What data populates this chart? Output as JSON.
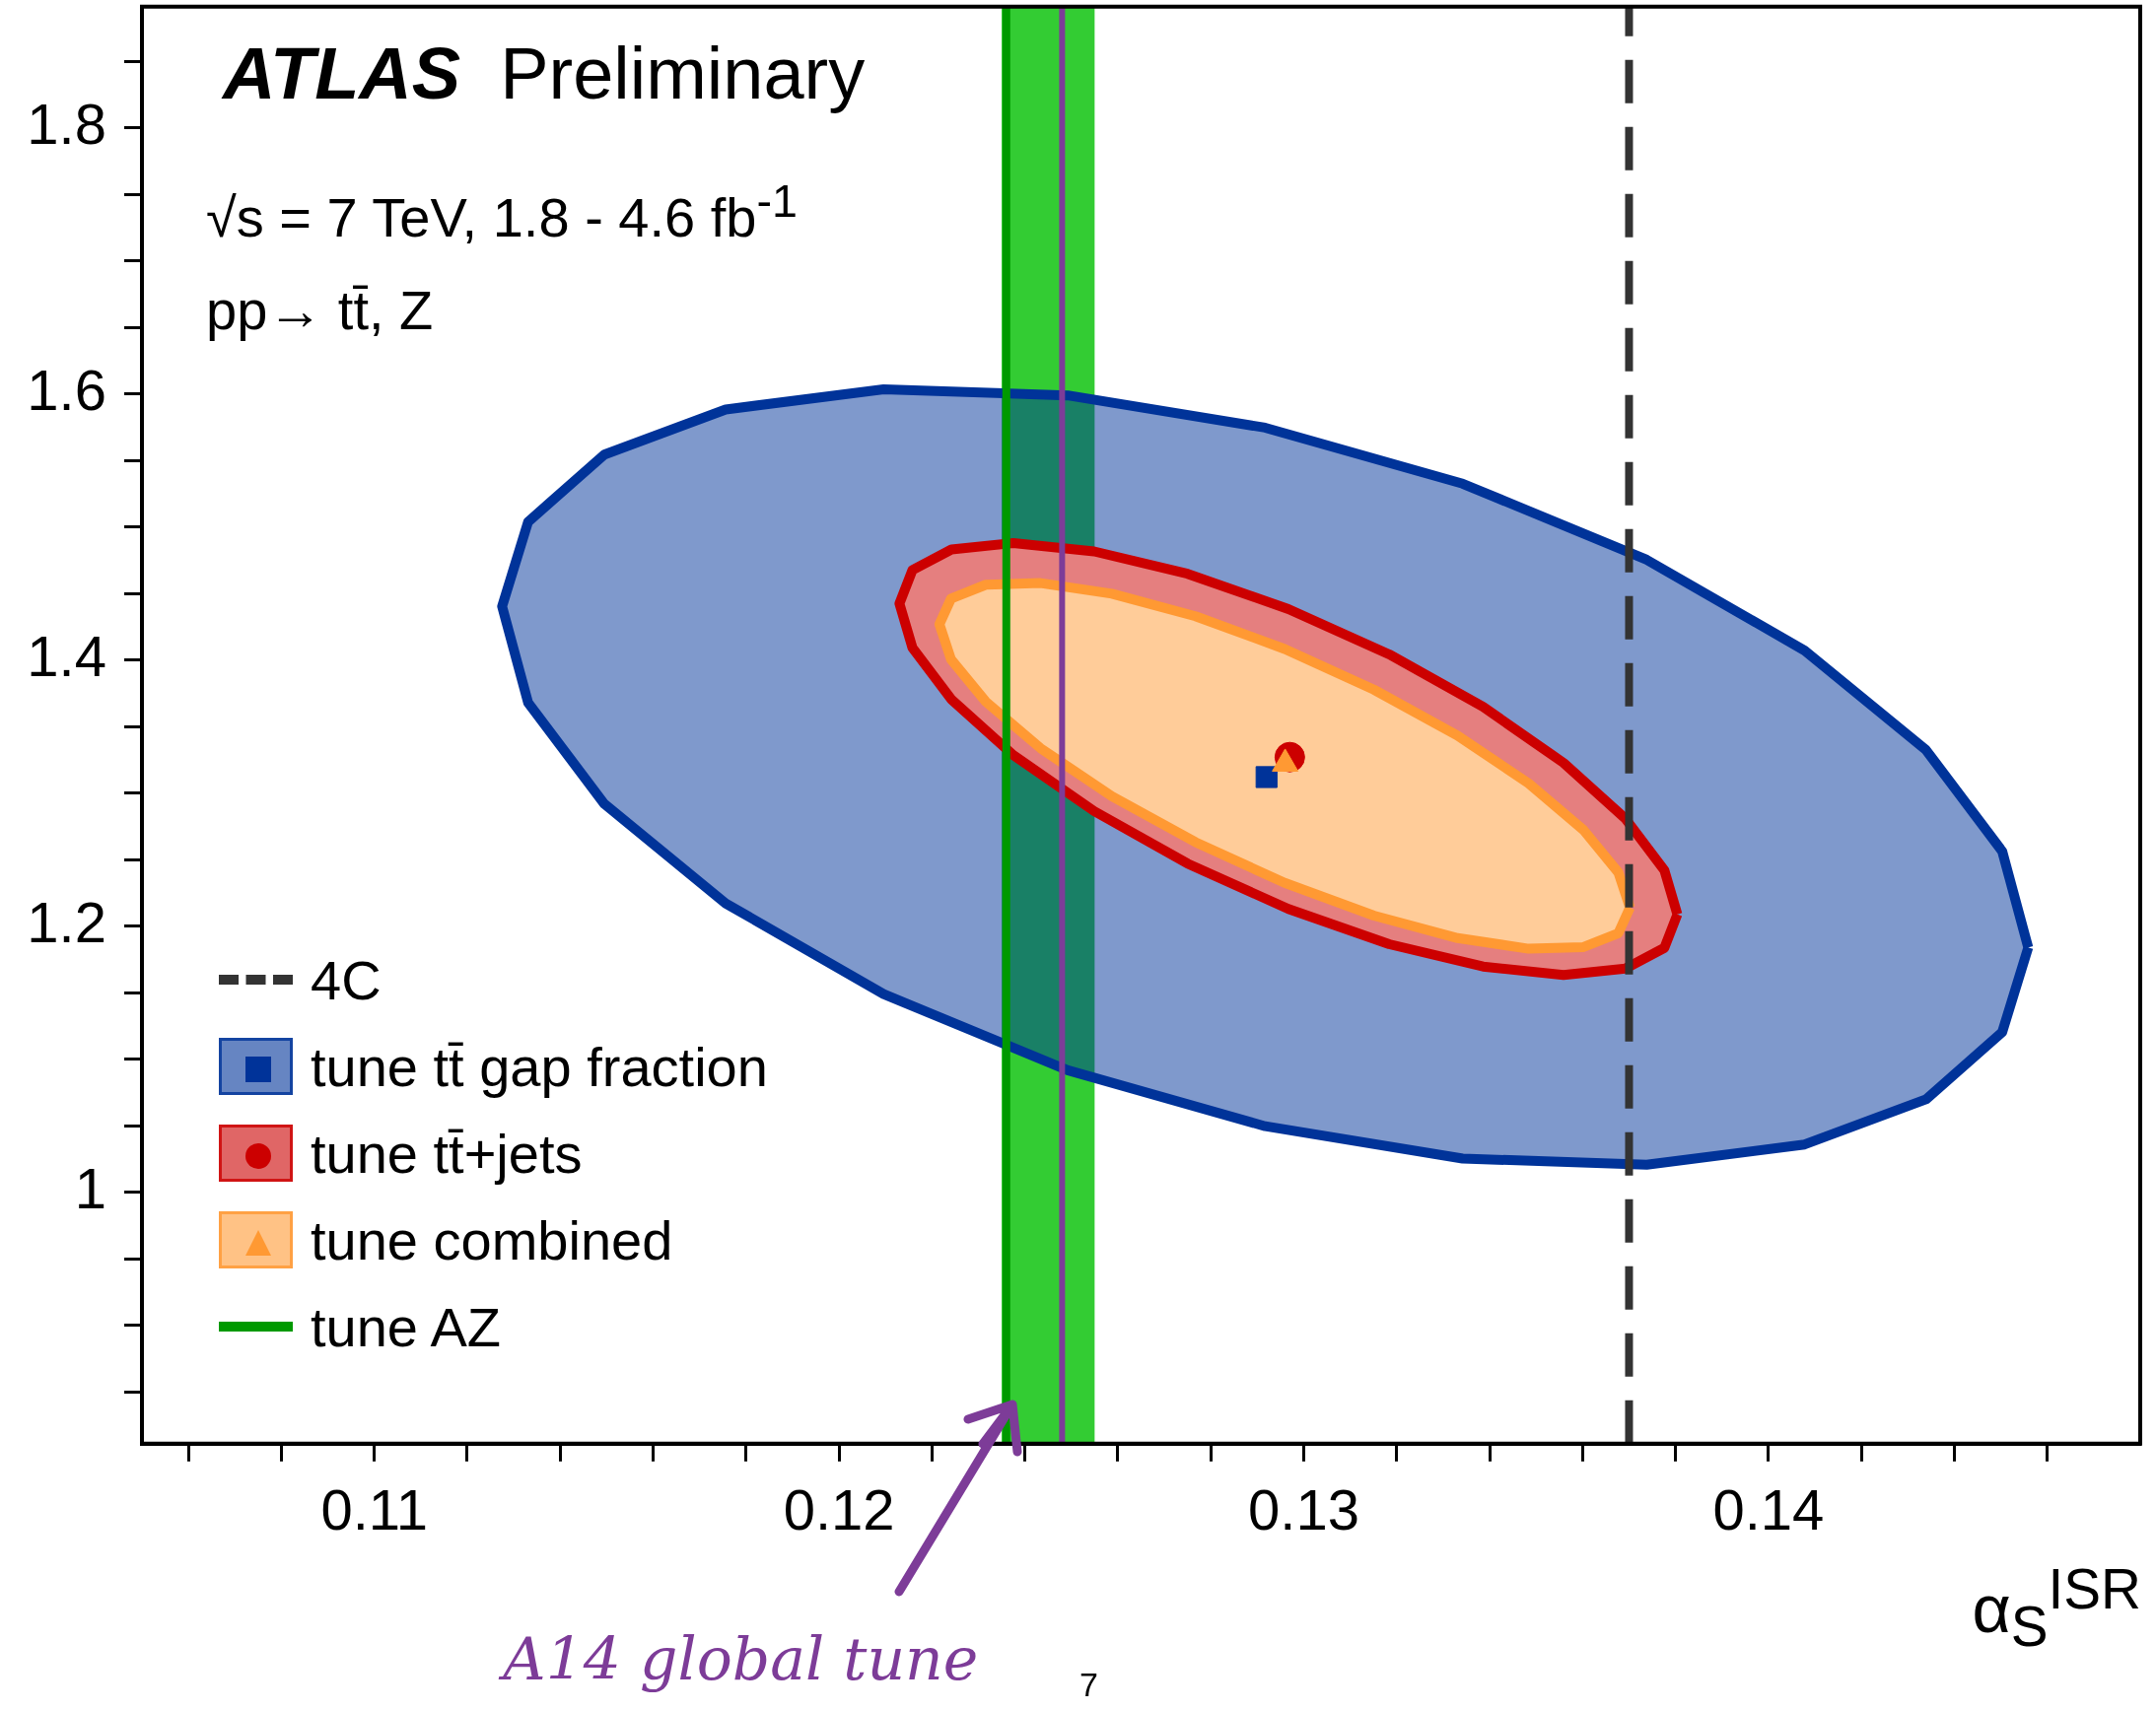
{
  "chart_data": {
    "type": "area",
    "title": "ATLAS",
    "subtitle": "Preliminary",
    "xlabel": "α$_{S}$$^{ISR}$",
    "annotations": [
      "√s = 7 TeV, 1.8 - 4.6 fb$^{-1}$",
      "pp→ tt̄, Z",
      "7"
    ],
    "xlim": [
      0.105,
      0.148
    ],
    "ylim": [
      0.811,
      1.891
    ],
    "xticks": [
      {
        "value": 0.106,
        "label": null
      },
      {
        "value": 0.108,
        "label": null
      },
      0.11,
      {
        "value": 0.112,
        "label": null
      },
      {
        "value": 0.114,
        "label": null
      },
      {
        "value": 0.116,
        "label": null
      },
      {
        "value": 0.118,
        "label": null
      },
      0.12,
      {
        "value": 0.122,
        "label": null
      },
      {
        "value": 0.124,
        "label": null
      },
      {
        "value": 0.126,
        "label": null
      },
      {
        "value": 0.128,
        "label": null
      },
      0.13,
      {
        "value": 0.132,
        "label": null
      },
      {
        "value": 0.134,
        "label": null
      },
      {
        "value": 0.136,
        "label": null
      },
      {
        "value": 0.138,
        "label": null
      },
      0.14,
      {
        "value": 0.142,
        "label": null
      },
      {
        "value": 0.144,
        "label": null
      },
      {
        "value": 0.146,
        "label": null
      }
    ],
    "yticks": [
      {
        "value": 0.85,
        "label": null
      },
      {
        "value": 0.9,
        "label": null
      },
      {
        "value": 0.95,
        "label": null
      },
      1,
      {
        "value": 1.05,
        "label": null
      },
      {
        "value": 1.1,
        "label": null
      },
      {
        "value": 1.15,
        "label": null
      },
      1.2,
      {
        "value": 1.25,
        "label": null
      },
      {
        "value": 1.3,
        "label": null
      },
      {
        "value": 1.35,
        "label": null
      },
      1.4,
      {
        "value": 1.45,
        "label": null
      },
      {
        "value": 1.5,
        "label": null
      },
      {
        "value": 1.55,
        "label": null
      },
      1.6,
      {
        "value": 1.65,
        "label": null
      },
      {
        "value": 1.7,
        "label": null
      },
      {
        "value": 1.75,
        "label": null
      },
      1.8,
      {
        "value": 1.85,
        "label": null
      }
    ],
    "legend": "bottom left",
    "bands": [
      {
        "axis": "x",
        "from": 0.1235,
        "to": 0.1255,
        "color": "#33cc33"
      }
    ],
    "ref_lines": [
      {
        "axis": "x",
        "value": 0.1248,
        "label": "A14 global tune",
        "color": "#7d3c98"
      }
    ],
    "series": [
      {
        "color": "#003399",
        "x": [
          0.14559,
          0.14503,
          0.14339,
          0.14078,
          0.13738,
          0.13342,
          0.12917,
          0.12492,
          0.12096,
          0.11756,
          0.11495,
          0.11331,
          0.11275,
          0.11331,
          0.11495,
          0.11756,
          0.12096,
          0.12492,
          0.12917,
          0.13342,
          0.13738,
          0.14078,
          0.14339,
          0.14503,
          0.14559
        ],
        "values": [
          1.1839,
          1.1203,
          1.0698,
          1.0359,
          1.0207,
          1.0253,
          1.0496,
          1.0917,
          1.1489,
          1.2171,
          1.2918,
          1.3679,
          1.4403,
          1.5039,
          1.5544,
          1.5883,
          1.6035,
          1.5989,
          1.5746,
          1.5325,
          1.4753,
          1.4071,
          1.3324,
          1.2563,
          1.1839
        ]
      },
      {
        "color": "#cc0000",
        "x": [
          0.13804,
          0.13776,
          0.13692,
          0.13559,
          0.13386,
          0.13184,
          0.12967,
          0.1275,
          0.12549,
          0.12375,
          0.12242,
          0.12158,
          0.1213,
          0.12158,
          0.12242,
          0.12375,
          0.12549,
          0.1275,
          0.12967,
          0.13184,
          0.13386,
          0.13559,
          0.13692,
          0.13776,
          0.13804
        ],
        "values": [
          1.2088,
          1.1836,
          1.1681,
          1.1633,
          1.1696,
          1.1864,
          1.2129,
          1.247,
          1.2864,
          1.3285,
          1.3703,
          1.4092,
          1.4424,
          1.4676,
          1.4831,
          1.4879,
          1.4816,
          1.4648,
          1.4383,
          1.4042,
          1.3648,
          1.3227,
          1.2809,
          1.242,
          1.2088
        ]
      },
      {
        "color": "#ff9933",
        "x": [
          0.13702,
          0.13677,
          0.13602,
          0.13484,
          0.13331,
          0.13151,
          0.12959,
          0.12767,
          0.12587,
          0.12434,
          0.12316,
          0.12241,
          0.12216,
          0.12241,
          0.12316,
          0.12434,
          0.12587,
          0.12767,
          0.12959,
          0.13151,
          0.13331,
          0.13484,
          0.13602,
          0.13677,
          0.13702
        ],
        "values": [
          1.2139,
          1.1947,
          1.1842,
          1.183,
          1.191,
          1.2079,
          1.2325,
          1.2631,
          1.2976,
          1.3336,
          1.3686,
          1.4005,
          1.4269,
          1.4461,
          1.4566,
          1.4578,
          1.4498,
          1.4329,
          1.4083,
          1.3777,
          1.3432,
          1.3072,
          1.2722,
          1.2403,
          1.2139
        ]
      },
      {
        "type": "line",
        "name": "4C",
        "color": "#333333",
        "line_style": "dashed",
        "x": [
          0.137,
          0.137
        ],
        "values": [
          0.811,
          1.891
        ]
      },
      {
        "type": "scatter",
        "name": "tune tt̄ gap fraction",
        "color": "#003399",
        "marker": "square",
        "x": [
          0.1292
        ],
        "values": [
          1.312
        ]
      },
      {
        "type": "scatter",
        "name": "tune tt̄+jets",
        "color": "#cc0000",
        "marker": "circle",
        "x": [
          0.1297
        ],
        "values": [
          1.327
        ]
      },
      {
        "type": "scatter",
        "name": "tune combined",
        "color": "#ff9933",
        "marker": "triangle",
        "x": [
          0.1296
        ],
        "values": [
          1.322
        ]
      },
      {
        "type": "line",
        "name": "tune AZ",
        "color": "#009900",
        "x": [
          0.1236,
          0.1236
        ],
        "values": [
          0.811,
          1.891
        ]
      }
    ]
  }
}
